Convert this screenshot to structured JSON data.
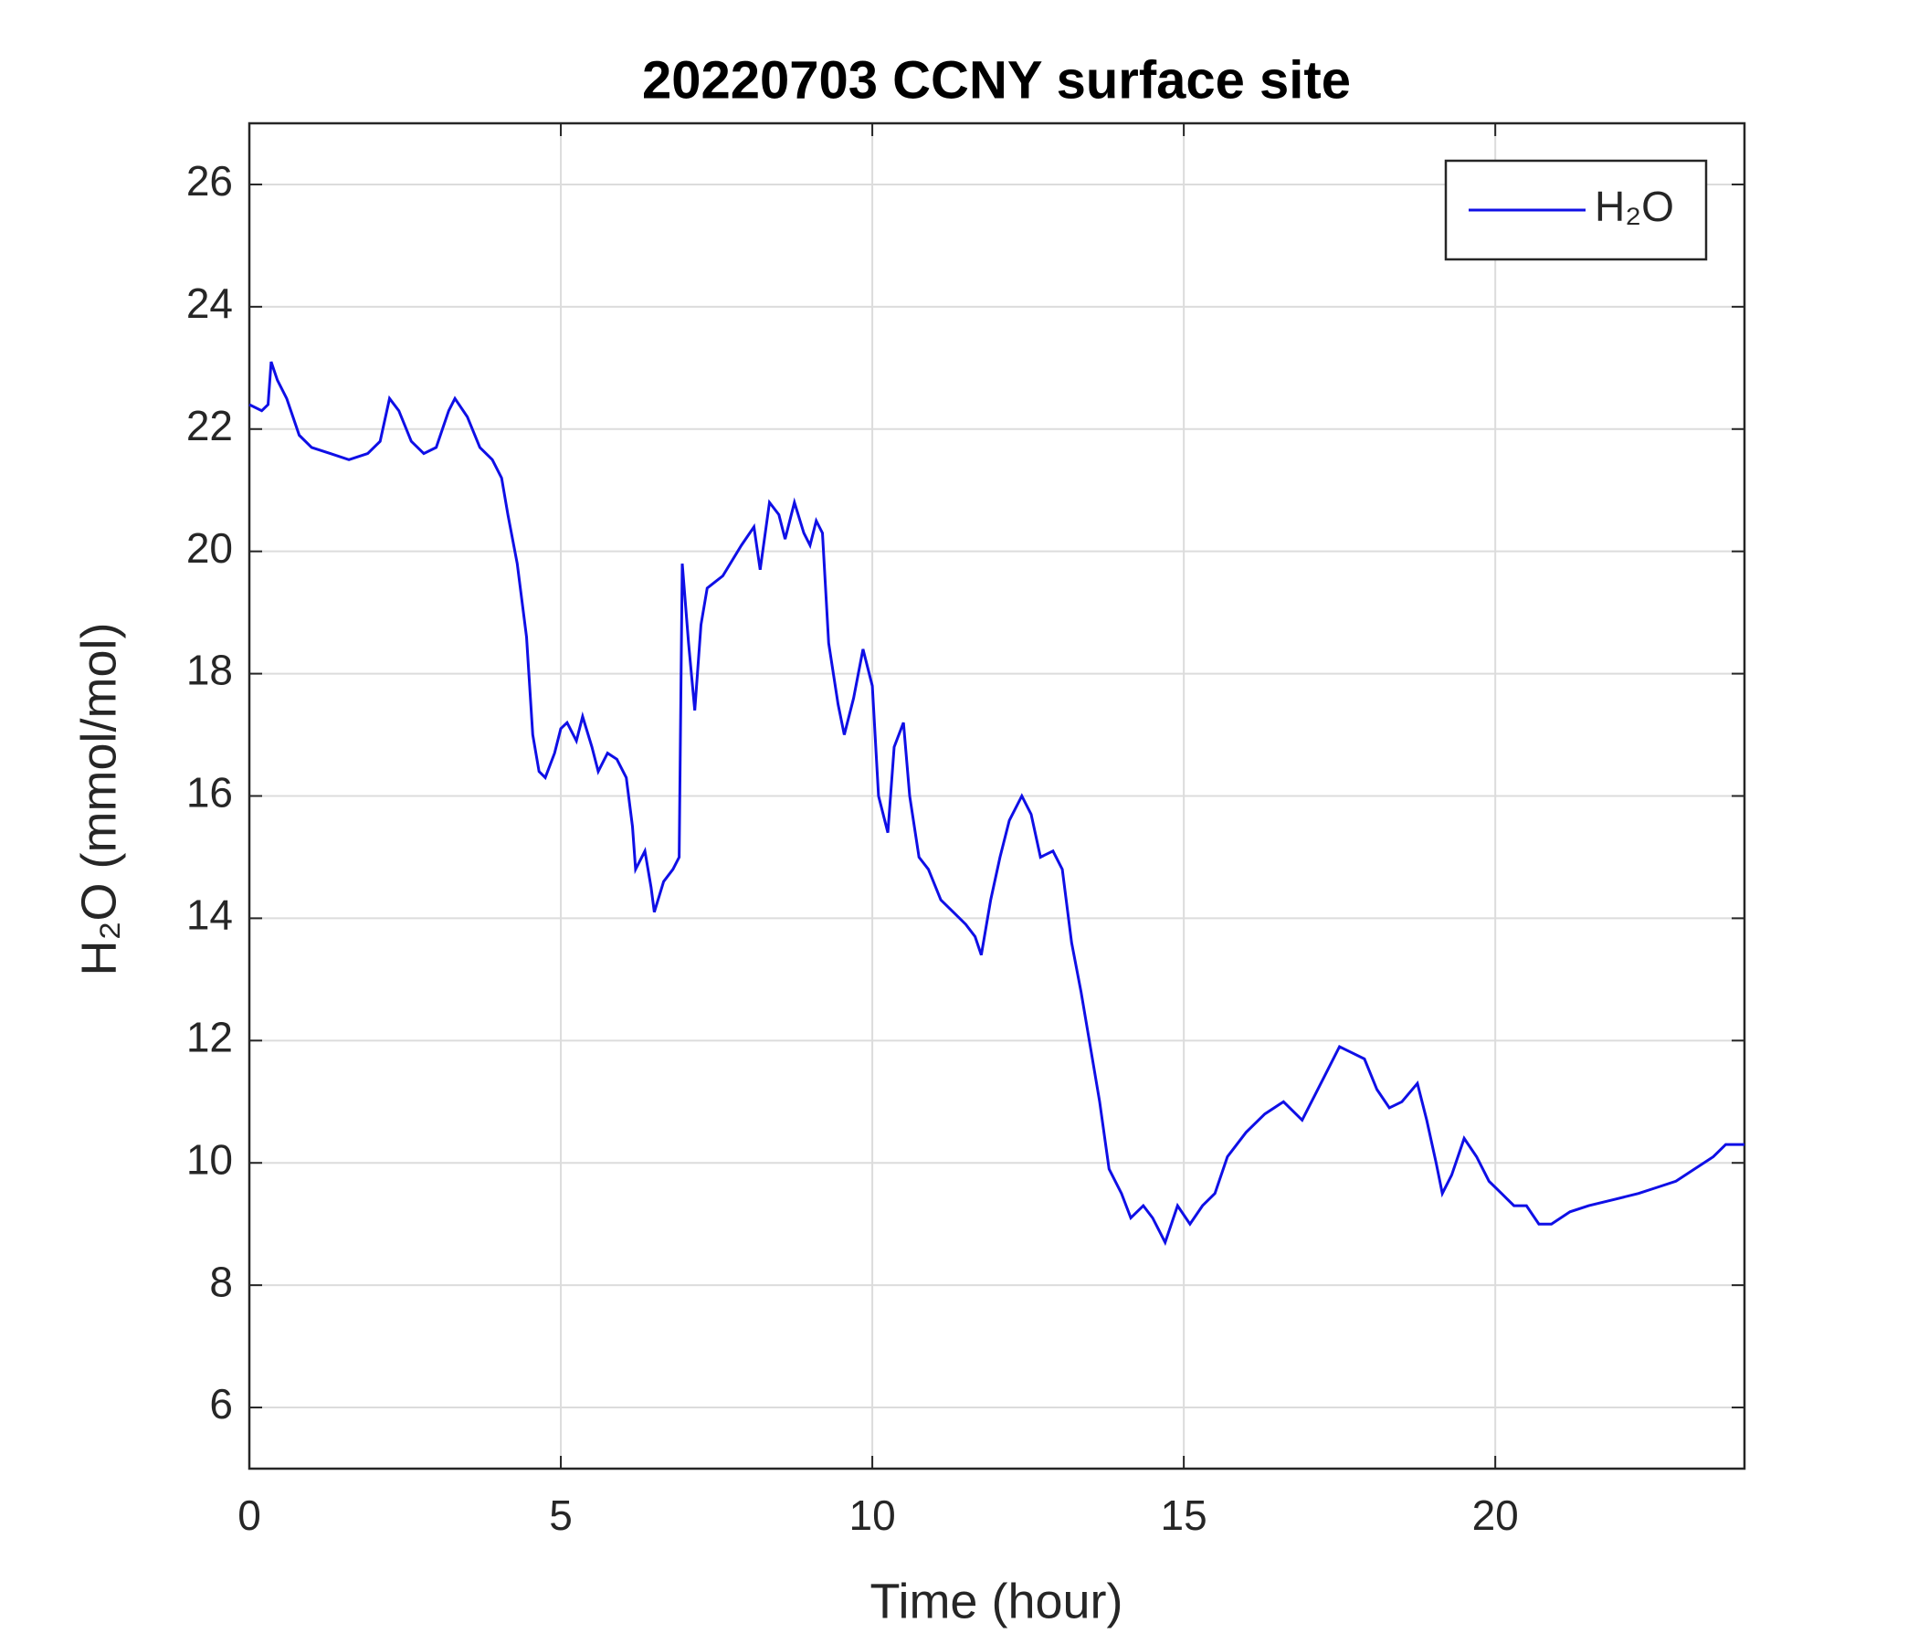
{
  "chart_data": {
    "type": "line",
    "title": "20220703 CCNY surface site",
    "xlabel": "Time (hour)",
    "ylabel": "H₂O (mmol/mol)",
    "x": [
      0,
      0.2,
      0.3,
      0.35,
      0.45,
      0.6,
      0.8,
      1.0,
      1.3,
      1.6,
      1.9,
      2.1,
      2.25,
      2.4,
      2.6,
      2.8,
      3.0,
      3.2,
      3.3,
      3.5,
      3.7,
      3.9,
      4.05,
      4.15,
      4.3,
      4.45,
      4.55,
      4.65,
      4.75,
      4.9,
      5.0,
      5.1,
      5.25,
      5.35,
      5.5,
      5.6,
      5.75,
      5.9,
      6.05,
      6.15,
      6.2,
      6.35,
      6.45,
      6.5,
      6.65,
      6.8,
      6.9,
      6.95,
      7.05,
      7.15,
      7.25,
      7.35,
      7.6,
      7.9,
      8.1,
      8.2,
      8.35,
      8.5,
      8.6,
      8.75,
      8.9,
      9.0,
      9.1,
      9.2,
      9.3,
      9.45,
      9.55,
      9.7,
      9.85,
      10.0,
      10.1,
      10.25,
      10.35,
      10.5,
      10.6,
      10.75,
      10.9,
      11.1,
      11.3,
      11.5,
      11.65,
      11.75,
      11.9,
      12.05,
      12.2,
      12.4,
      12.55,
      12.7,
      12.9,
      13.05,
      13.2,
      13.35,
      13.5,
      13.65,
      13.8,
      14.0,
      14.15,
      14.35,
      14.5,
      14.7,
      14.9,
      15.1,
      15.3,
      15.5,
      15.7,
      16.0,
      16.3,
      16.6,
      16.9,
      17.1,
      17.3,
      17.5,
      17.7,
      17.9,
      18.1,
      18.3,
      18.5,
      18.75,
      18.9,
      19.05,
      19.15,
      19.3,
      19.5,
      19.7,
      19.9,
      20.1,
      20.3,
      20.5,
      20.7,
      20.9,
      21.2,
      21.5,
      21.9,
      22.3,
      22.6,
      22.9,
      23.2,
      23.5,
      23.7,
      24
    ],
    "series": [
      {
        "name": "H₂O",
        "color": "#0f0fe6",
        "values": [
          22.4,
          22.3,
          22.4,
          23.1,
          22.8,
          22.5,
          21.9,
          21.7,
          21.6,
          21.5,
          21.6,
          21.8,
          22.5,
          22.3,
          21.8,
          21.6,
          21.7,
          22.3,
          22.5,
          22.2,
          21.7,
          21.5,
          21.2,
          20.6,
          19.8,
          18.6,
          17.0,
          16.4,
          16.3,
          16.7,
          17.1,
          17.2,
          16.9,
          17.3,
          16.8,
          16.4,
          16.7,
          16.6,
          16.3,
          15.5,
          14.8,
          15.1,
          14.5,
          14.1,
          14.6,
          14.8,
          15.0,
          19.8,
          18.5,
          17.4,
          18.8,
          19.4,
          19.6,
          20.1,
          20.4,
          19.7,
          20.8,
          20.6,
          20.2,
          20.8,
          20.3,
          20.1,
          20.5,
          20.3,
          18.5,
          17.5,
          17.0,
          17.6,
          18.4,
          17.8,
          16.0,
          15.4,
          16.8,
          17.2,
          16.0,
          15.0,
          14.8,
          14.3,
          14.1,
          13.9,
          13.7,
          13.4,
          14.3,
          15.0,
          15.6,
          16.0,
          15.7,
          15.0,
          15.1,
          14.8,
          13.6,
          12.8,
          11.9,
          11.0,
          9.9,
          9.5,
          9.1,
          9.3,
          9.1,
          8.7,
          9.3,
          9.0,
          9.3,
          9.5,
          10.1,
          10.5,
          10.8,
          11.0,
          10.7,
          11.1,
          11.5,
          11.9,
          11.8,
          11.7,
          11.2,
          10.9,
          11.0,
          11.3,
          10.7,
          10.0,
          9.5,
          9.8,
          10.4,
          10.1,
          9.7,
          9.5,
          9.3,
          9.3,
          9.0,
          9.0,
          9.2,
          9.3,
          9.4,
          9.5,
          9.6,
          9.7,
          9.9,
          10.1,
          10.3,
          10.3
        ]
      }
    ],
    "xlim": [
      0,
      24
    ],
    "xticks": [
      0,
      5,
      10,
      15,
      20
    ],
    "ylim": [
      5,
      27
    ],
    "yticks": [
      6,
      8,
      10,
      12,
      14,
      16,
      18,
      20,
      22,
      24,
      26
    ],
    "grid": true,
    "legend": "top-right"
  }
}
